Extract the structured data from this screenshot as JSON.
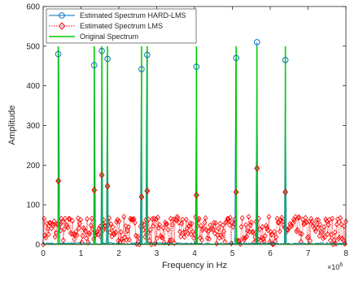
{
  "chart_data": {
    "type": "line",
    "xlabel": "Frequency in Hz",
    "ylabel": "Amplitude",
    "x_exponent_base": "×10",
    "x_exponent_power": "6",
    "xlim": [
      0,
      8
    ],
    "ylim": [
      0,
      600
    ],
    "xticks": [
      "0",
      "1",
      "2",
      "3",
      "4",
      "5",
      "6",
      "7",
      "8"
    ],
    "yticks": [
      "0",
      "100",
      "200",
      "300",
      "400",
      "500",
      "600"
    ],
    "grid": false,
    "legend_position": "top-left",
    "colors": {
      "hard_lms": "#0072BD",
      "lms": "#FF0000",
      "original": "#00CC00",
      "axis": "#262626"
    },
    "series": [
      {
        "name": "Estimated Spectrum HARD-LMS",
        "style": "line-circle",
        "peaks_x": [
          0.4,
          1.35,
          1.55,
          1.7,
          2.6,
          2.75,
          4.05,
          5.1,
          5.65,
          6.4
        ],
        "peaks_y": [
          480,
          452,
          488,
          468,
          442,
          478,
          448,
          470,
          510,
          465
        ],
        "noise_level": 5
      },
      {
        "name": "Estimated Spectrum LMS",
        "style": "dotted-diamond",
        "peaks_x": [
          0.4,
          1.35,
          1.55,
          1.7,
          2.6,
          2.75,
          4.05,
          5.1,
          5.65,
          6.4
        ],
        "peaks_y": [
          160,
          137,
          175,
          147,
          120,
          135,
          124,
          132,
          192,
          132
        ],
        "noise_range": [
          0,
          70
        ]
      },
      {
        "name": "Original Spectrum",
        "style": "line",
        "peaks_x": [
          0.4,
          1.35,
          1.55,
          1.7,
          2.6,
          2.75,
          4.05,
          5.1,
          5.65,
          6.4
        ],
        "peaks_y": [
          500,
          500,
          500,
          500,
          500,
          500,
          500,
          500,
          500,
          500
        ]
      }
    ]
  }
}
